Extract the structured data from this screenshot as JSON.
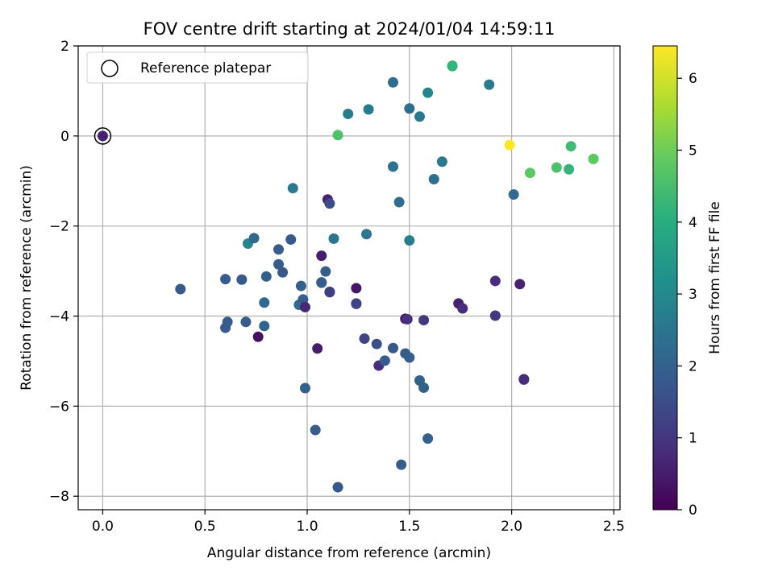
{
  "chart_data": {
    "type": "scatter",
    "title": "FOV centre drift starting at 2024/01/04 14:59:11",
    "xlabel": "Angular distance from reference (arcmin)",
    "ylabel": "Rotation from reference (arcmin)",
    "xlim": [
      -0.12,
      2.53
    ],
    "ylim": [
      -8.3,
      2.0
    ],
    "xticks": [
      0.0,
      0.5,
      1.0,
      1.5,
      2.0,
      2.5
    ],
    "xtick_labels": [
      "0.0",
      "0.5",
      "1.0",
      "1.5",
      "2.0",
      "2.5"
    ],
    "yticks": [
      2,
      0,
      -2,
      -4,
      -6,
      -8
    ],
    "ytick_labels": [
      "2",
      "0",
      "−2",
      "−4",
      "−6",
      "−8"
    ],
    "grid": true,
    "legend": {
      "position": "top-left",
      "label": "Reference platepar"
    },
    "reference_point": {
      "x": 0.0,
      "y": 0.0
    },
    "colorbar": {
      "label": "Hours from first FF file",
      "min": 0,
      "max": 6.45,
      "ticks": [
        0,
        1,
        2,
        3,
        4,
        5,
        6
      ],
      "tick_labels": [
        "0",
        "1",
        "2",
        "3",
        "4",
        "5",
        "6"
      ],
      "colormap": "viridis"
    },
    "points": [
      {
        "x": 0.0,
        "y": 0.0,
        "c": 0.6
      },
      {
        "x": 0.38,
        "y": -3.4,
        "c": 1.8
      },
      {
        "x": 0.6,
        "y": -3.18,
        "c": 1.9
      },
      {
        "x": 0.6,
        "y": -4.26,
        "c": 1.85
      },
      {
        "x": 0.61,
        "y": -4.13,
        "c": 1.9
      },
      {
        "x": 0.68,
        "y": -3.19,
        "c": 1.8
      },
      {
        "x": 0.7,
        "y": -4.13,
        "c": 1.85
      },
      {
        "x": 0.71,
        "y": -2.39,
        "c": 2.9
      },
      {
        "x": 0.74,
        "y": -2.27,
        "c": 2.2
      },
      {
        "x": 0.76,
        "y": -4.46,
        "c": 0.3
      },
      {
        "x": 0.79,
        "y": -4.22,
        "c": 2.1
      },
      {
        "x": 0.79,
        "y": -3.7,
        "c": 2.2
      },
      {
        "x": 0.8,
        "y": -3.12,
        "c": 2.0
      },
      {
        "x": 0.86,
        "y": -2.85,
        "c": 1.9
      },
      {
        "x": 0.86,
        "y": -2.52,
        "c": 1.9
      },
      {
        "x": 0.88,
        "y": -3.03,
        "c": 1.8
      },
      {
        "x": 0.92,
        "y": -2.3,
        "c": 1.8
      },
      {
        "x": 0.93,
        "y": -1.16,
        "c": 2.6
      },
      {
        "x": 0.96,
        "y": -3.75,
        "c": 2.3
      },
      {
        "x": 0.97,
        "y": -3.33,
        "c": 2.0
      },
      {
        "x": 0.98,
        "y": -3.63,
        "c": 1.9
      },
      {
        "x": 0.99,
        "y": -5.6,
        "c": 2.0
      },
      {
        "x": 0.99,
        "y": -3.8,
        "c": 0.7
      },
      {
        "x": 1.04,
        "y": -6.53,
        "c": 1.9
      },
      {
        "x": 1.05,
        "y": -4.72,
        "c": 0.5
      },
      {
        "x": 1.07,
        "y": -2.66,
        "c": 0.5
      },
      {
        "x": 1.07,
        "y": -3.25,
        "c": 1.5
      },
      {
        "x": 1.07,
        "y": -3.26,
        "c": 1.9
      },
      {
        "x": 1.09,
        "y": -3.01,
        "c": 1.9
      },
      {
        "x": 1.1,
        "y": -1.41,
        "c": 0.6
      },
      {
        "x": 1.11,
        "y": -1.5,
        "c": 1.5
      },
      {
        "x": 1.11,
        "y": -3.46,
        "c": 1.5
      },
      {
        "x": 1.11,
        "y": -3.47,
        "c": 1.2
      },
      {
        "x": 1.13,
        "y": -2.28,
        "c": 2.5
      },
      {
        "x": 1.15,
        "y": -7.8,
        "c": 1.8
      },
      {
        "x": 1.15,
        "y": 0.02,
        "c": 4.6
      },
      {
        "x": 1.2,
        "y": 0.49,
        "c": 2.7
      },
      {
        "x": 1.24,
        "y": -3.38,
        "c": 0.4
      },
      {
        "x": 1.24,
        "y": -3.72,
        "c": 1.1
      },
      {
        "x": 1.24,
        "y": -3.73,
        "c": 1.3
      },
      {
        "x": 1.28,
        "y": -4.5,
        "c": 1.3
      },
      {
        "x": 1.29,
        "y": -2.18,
        "c": 2.5
      },
      {
        "x": 1.3,
        "y": 0.59,
        "c": 2.7
      },
      {
        "x": 1.34,
        "y": -4.62,
        "c": 1.5
      },
      {
        "x": 1.35,
        "y": -5.1,
        "c": 0.8
      },
      {
        "x": 1.38,
        "y": -4.99,
        "c": 1.9
      },
      {
        "x": 1.42,
        "y": 1.19,
        "c": 2.3
      },
      {
        "x": 1.42,
        "y": -0.68,
        "c": 2.4
      },
      {
        "x": 1.42,
        "y": -4.71,
        "c": 1.8
      },
      {
        "x": 1.45,
        "y": -1.47,
        "c": 2.3
      },
      {
        "x": 1.46,
        "y": -7.3,
        "c": 1.9
      },
      {
        "x": 1.48,
        "y": -4.06,
        "c": 0.4
      },
      {
        "x": 1.48,
        "y": -4.83,
        "c": 1.9
      },
      {
        "x": 1.49,
        "y": -4.07,
        "c": 0.9
      },
      {
        "x": 1.5,
        "y": -4.92,
        "c": 1.9
      },
      {
        "x": 1.5,
        "y": 0.61,
        "c": 2.3
      },
      {
        "x": 1.5,
        "y": -2.32,
        "c": 2.7
      },
      {
        "x": 1.55,
        "y": -5.43,
        "c": 2.0
      },
      {
        "x": 1.55,
        "y": 0.43,
        "c": 2.6
      },
      {
        "x": 1.57,
        "y": -4.09,
        "c": 1.1
      },
      {
        "x": 1.57,
        "y": -5.59,
        "c": 2.0
      },
      {
        "x": 1.59,
        "y": -6.72,
        "c": 2.0
      },
      {
        "x": 1.59,
        "y": 0.96,
        "c": 2.9
      },
      {
        "x": 1.62,
        "y": -0.96,
        "c": 2.4
      },
      {
        "x": 1.66,
        "y": -0.57,
        "c": 2.6
      },
      {
        "x": 1.71,
        "y": 1.55,
        "c": 3.9
      },
      {
        "x": 1.71,
        "y": 1.56,
        "c": 4.2
      },
      {
        "x": 1.74,
        "y": -3.72,
        "c": 0.6
      },
      {
        "x": 1.76,
        "y": -3.83,
        "c": 0.8
      },
      {
        "x": 1.89,
        "y": 1.14,
        "c": 2.6
      },
      {
        "x": 1.92,
        "y": -3.22,
        "c": 0.8
      },
      {
        "x": 1.92,
        "y": -3.99,
        "c": 1.0
      },
      {
        "x": 1.99,
        "y": -0.2,
        "c": 6.45
      },
      {
        "x": 2.01,
        "y": -1.3,
        "c": 2.3
      },
      {
        "x": 2.04,
        "y": -3.29,
        "c": 0.6
      },
      {
        "x": 2.06,
        "y": -5.4,
        "c": 1.1
      },
      {
        "x": 2.06,
        "y": -5.41,
        "c": 0.8
      },
      {
        "x": 2.09,
        "y": -0.82,
        "c": 4.8
      },
      {
        "x": 2.22,
        "y": -0.7,
        "c": 4.6
      },
      {
        "x": 2.28,
        "y": -0.74,
        "c": 4.2
      },
      {
        "x": 2.29,
        "y": -0.23,
        "c": 4.4
      },
      {
        "x": 2.4,
        "y": -0.51,
        "c": 4.8
      }
    ]
  }
}
